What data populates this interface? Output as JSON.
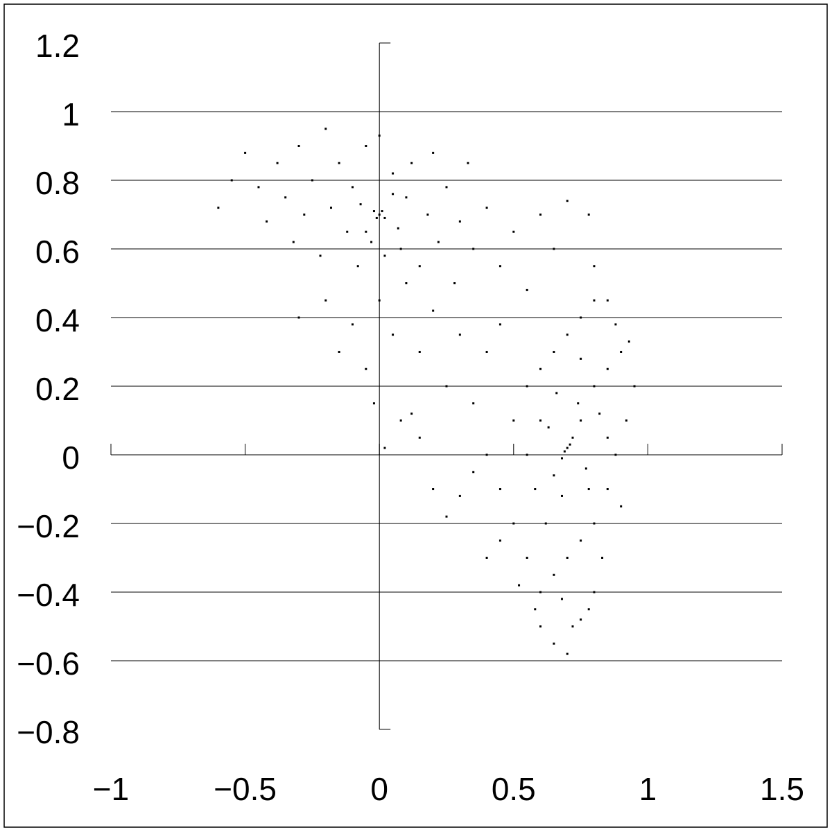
{
  "chart_data": {
    "type": "scatter",
    "xlim": [
      -1,
      1.5
    ],
    "ylim": [
      -0.8,
      1.2
    ],
    "xticks": [
      {
        "value": -1,
        "label": "−1"
      },
      {
        "value": -0.5,
        "label": "−0.5"
      },
      0,
      0.5,
      1,
      1.5
    ],
    "yticks": [
      {
        "value": -0.8,
        "label": "−0.8"
      },
      {
        "value": -0.6,
        "label": "−0.6"
      },
      {
        "value": -0.4,
        "label": "−0.4"
      },
      {
        "value": -0.2,
        "label": "−0.2"
      },
      0,
      0.2,
      0.4,
      0.6,
      0.8,
      1,
      1.2
    ],
    "grid": true,
    "series": [
      {
        "color": "#000000",
        "x": [
          -0.6,
          -0.55,
          -0.5,
          -0.45,
          -0.42,
          -0.38,
          -0.35,
          -0.32,
          -0.3,
          -0.28,
          -0.25,
          -0.22,
          -0.2,
          -0.18,
          -0.15,
          -0.12,
          -0.1,
          -0.08,
          -0.05,
          -0.03,
          0,
          0.02,
          0.05,
          0.08,
          0.1,
          0.12,
          0.15,
          0.18,
          0.2,
          0.22,
          0.25,
          0.28,
          0.3,
          0.33,
          0.35,
          0.4,
          0.45,
          0.5,
          0.55,
          0.6,
          0.65,
          0.7,
          0.78,
          0.8,
          0.85,
          0.88,
          -0.3,
          -0.2,
          -0.15,
          -0.1,
          -0.05,
          0,
          0.05,
          0.1,
          0.15,
          0.2,
          0.25,
          0.3,
          -0.02,
          0.02,
          0.08,
          0.12,
          0.35,
          0.4,
          0.45,
          0,
          0.01,
          -0.01,
          0.02,
          -0.02,
          -0.07,
          0.07,
          -0.05,
          0.05,
          0.7,
          0.71,
          0.69,
          0.72,
          0.68,
          0.63,
          0.77,
          0.75,
          0.65,
          0.5,
          0.55,
          0.6,
          0.65,
          0.7,
          0.75,
          0.8,
          0.85,
          0.9,
          0.95,
          0.92,
          0.88,
          0.9,
          0.85,
          0.8,
          0.75,
          0.7,
          0.65,
          0.6,
          0.55,
          0.5,
          0.45,
          0.4,
          0.45,
          0.4,
          0.35,
          0.3,
          0.25,
          0.2,
          0.15,
          0.6,
          0.65,
          0.7,
          0.75,
          0.8,
          0.78,
          0.72,
          0.62,
          0.58,
          0.55,
          0.6,
          0.82,
          0.85,
          0.78,
          0.68,
          0.74,
          0.66,
          0.52,
          0.58,
          0.68,
          0.83,
          0.75,
          0.8,
          0.93
        ],
        "values": [
          0.72,
          0.8,
          0.88,
          0.78,
          0.68,
          0.85,
          0.75,
          0.62,
          0.9,
          0.7,
          0.8,
          0.58,
          0.95,
          0.72,
          0.85,
          0.65,
          0.78,
          0.55,
          0.9,
          0.62,
          0.93,
          0.58,
          0.82,
          0.6,
          0.75,
          0.85,
          0.55,
          0.7,
          0.88,
          0.62,
          0.78,
          0.5,
          0.68,
          0.85,
          0.6,
          0.72,
          0.55,
          0.65,
          0.48,
          0.7,
          0.6,
          0.74,
          0.7,
          0.55,
          0.45,
          0.38,
          0.4,
          0.45,
          0.3,
          0.38,
          0.25,
          0.45,
          0.35,
          0.5,
          0.3,
          0.42,
          0.2,
          0.35,
          0.15,
          0.02,
          0.1,
          0.12,
          0.15,
          0.3,
          0.38,
          0.7,
          0.71,
          0.69,
          0.69,
          0.71,
          0.73,
          0.66,
          0.65,
          0.76,
          0.02,
          0.03,
          0.01,
          0.05,
          -0.01,
          0.08,
          -0.04,
          0.1,
          -0.06,
          0.1,
          0.2,
          0.25,
          0.3,
          0.35,
          0.28,
          0.2,
          0.25,
          0.3,
          0.2,
          0.1,
          0,
          -0.15,
          -0.1,
          -0.2,
          -0.25,
          -0.3,
          -0.35,
          -0.4,
          -0.3,
          -0.2,
          -0.25,
          -0.3,
          -0.1,
          0,
          -0.05,
          -0.12,
          -0.18,
          -0.1,
          0.05,
          -0.5,
          -0.55,
          -0.58,
          -0.48,
          -0.4,
          -0.45,
          -0.5,
          -0.2,
          -0.1,
          0,
          0.1,
          0.12,
          0.05,
          -0.1,
          -0.12,
          0.15,
          0.18,
          -0.38,
          -0.45,
          -0.42,
          -0.3,
          0.4,
          0.45,
          0.33
        ]
      }
    ]
  }
}
